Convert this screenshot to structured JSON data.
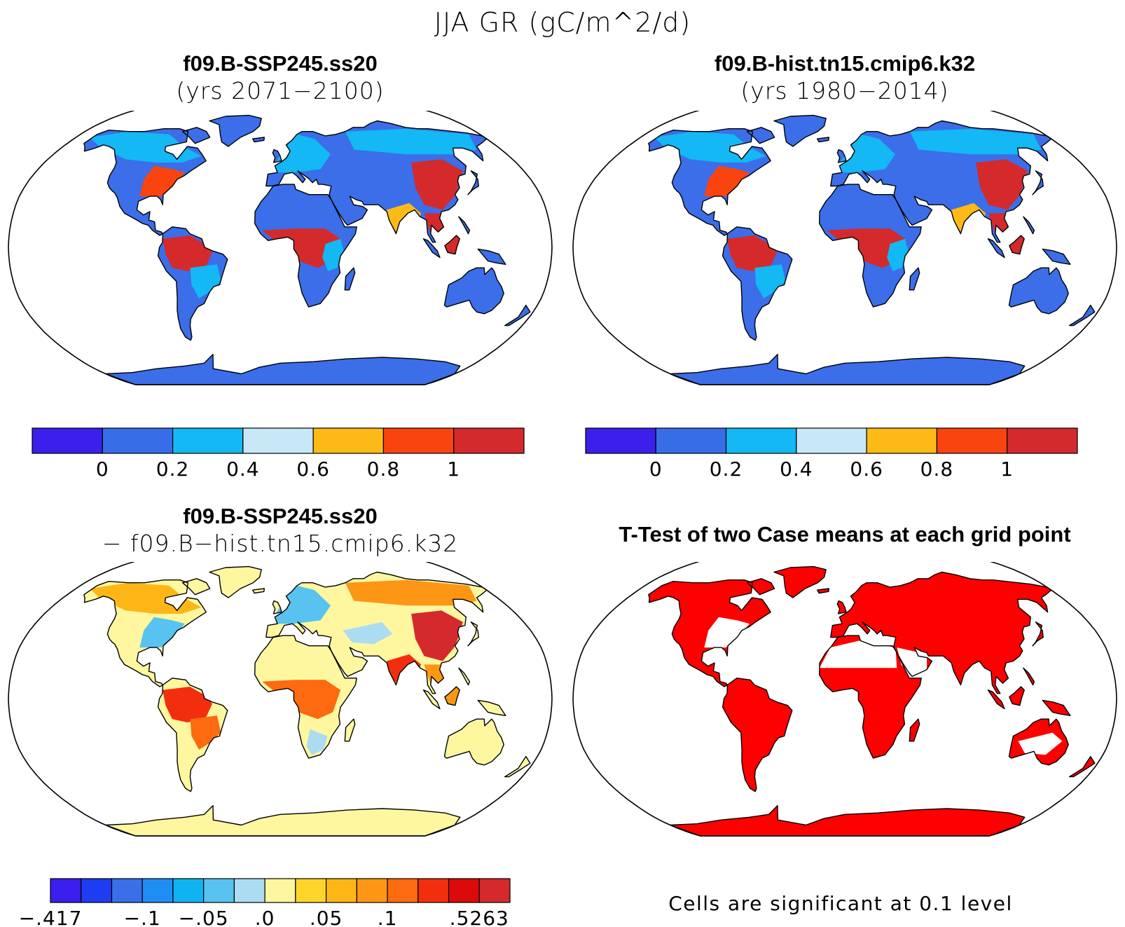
{
  "title": "JJA GR (gC/m^2/d)",
  "panels": [
    {
      "id": "tl",
      "title": "f09.B-SSP245.ss20",
      "subtitle": "(yrs 2071−2100)",
      "scheme": "abs"
    },
    {
      "id": "tr",
      "title": "f09.B-hist.tn15.cmip6.k32",
      "subtitle": "(yrs 1980−2014)",
      "scheme": "abs"
    },
    {
      "id": "bl",
      "title": "f09.B-SSP245.ss20",
      "subtitle": "− f09.B−hist.tn15.cmip6.k32",
      "scheme": "diff"
    },
    {
      "id": "br",
      "title": "T-Test of two Case means at each grid point",
      "subtitle": "",
      "scheme": "ttest"
    }
  ],
  "colorbar_abs": {
    "colors": [
      "#3b1fec",
      "#376ee8",
      "#13b8f5",
      "#c8e8f8",
      "#fdba16",
      "#f9440f",
      "#d42a2b"
    ],
    "labels": [
      "0",
      "0.2",
      "0.4",
      "0.6",
      "0.8",
      "1"
    ]
  },
  "colorbar_diff": {
    "colors": [
      "#3b1fec",
      "#1e3cf0",
      "#3a6fe8",
      "#1e8ef5",
      "#10b3f2",
      "#58c2f0",
      "#acdcf2",
      "#fef7a0",
      "#fdd52a",
      "#fdb616",
      "#fd9614",
      "#fd6a0f",
      "#f32e0f",
      "#dc0a0a",
      "#d42a2b"
    ],
    "labels": [
      "−.417",
      "−.1",
      "−.05",
      ".0",
      ".05",
      ".1",
      ".5263"
    ],
    "label_positions": [
      0,
      3,
      5,
      7,
      9,
      11,
      14
    ]
  },
  "ttest_color": "#ff0000",
  "footnote": "Cells are significant at 0.1 level"
}
